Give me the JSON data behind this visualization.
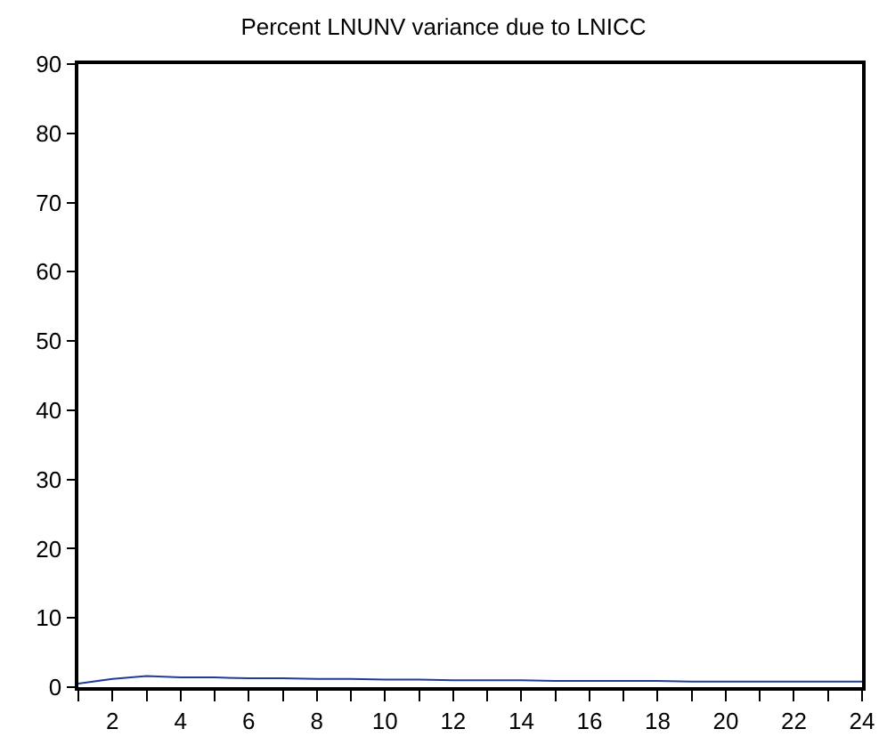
{
  "chart_data": {
    "type": "line",
    "title": "Percent LNUNV variance due to LNICC",
    "x": [
      1,
      2,
      3,
      4,
      5,
      6,
      7,
      8,
      9,
      10,
      11,
      12,
      13,
      14,
      15,
      16,
      17,
      18,
      19,
      20,
      21,
      22,
      23,
      24
    ],
    "series": [
      {
        "color": "#1f3c99",
        "values": [
          0.5,
          1.2,
          1.6,
          1.4,
          1.4,
          1.3,
          1.3,
          1.2,
          1.2,
          1.1,
          1.1,
          1.0,
          1.0,
          1.0,
          0.9,
          0.9,
          0.9,
          0.9,
          0.8,
          0.8,
          0.8,
          0.8,
          0.8,
          0.8
        ]
      }
    ],
    "xlim": [
      1,
      24
    ],
    "xticks": [
      {
        "value": 1,
        "label": null
      },
      2,
      {
        "value": 3,
        "label": null
      },
      4,
      {
        "value": 5,
        "label": null
      },
      6,
      {
        "value": 7,
        "label": null
      },
      8,
      {
        "value": 9,
        "label": null
      },
      10,
      {
        "value": 11,
        "label": null
      },
      12,
      {
        "value": 13,
        "label": null
      },
      14,
      {
        "value": 15,
        "label": null
      },
      16,
      {
        "value": 17,
        "label": null
      },
      18,
      {
        "value": 19,
        "label": null
      },
      20,
      {
        "value": 21,
        "label": null
      },
      22,
      {
        "value": 23,
        "label": null
      },
      24
    ],
    "ylim": [
      0,
      90
    ],
    "yticks": [
      0,
      10,
      20,
      30,
      40,
      50,
      60,
      70,
      80,
      90
    ],
    "grid": false,
    "marker": "none",
    "line_style": "solid"
  }
}
